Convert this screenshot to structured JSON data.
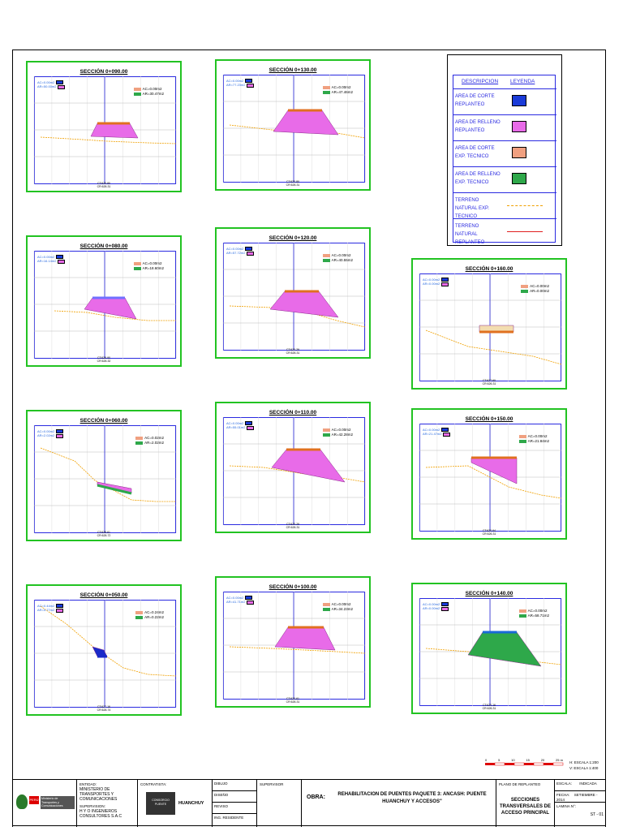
{
  "sections": [
    {
      "title": "SECCIÓN 0+090.00",
      "ac": "AC=0.00m2",
      "ar": "AR=30.47m2",
      "ct": "CT:620.80",
      "cr": "CR:626.31",
      "lt1": "AC=0.00m2",
      "lt2": "AR=50.00m2"
    },
    {
      "title": "SECCIÓN 0+130.00",
      "ac": "AC=0.00m2",
      "ar": "AR=47.46m2",
      "ct": "CT:620.80",
      "cr": "CR:626.31",
      "lt1": "AC=0.00m2",
      "lt2": "AR=77.23m2"
    },
    {
      "title": "SECCIÓN 0+080.00",
      "ac": "AC=0.00m2",
      "ar": "AR=18.60m2",
      "ct": "CT:626.90",
      "cr": "CR:626.32",
      "lt1": "AC=0.00m2",
      "lt2": "AR=16.14m2"
    },
    {
      "title": "SECCIÓN 0+120.00",
      "ac": "AC=0.00m2",
      "ar": "AR=40.55m2",
      "ct": "CT:620.29",
      "cr": "CR:626.31",
      "lt1": "AC=0.00m2",
      "lt2": "AR=57.72m2"
    },
    {
      "title": "SECCIÓN 0+160.00",
      "ac": "AC=0.00m2",
      "ar": "AR=0.00m2",
      "ct": "CT:627.60",
      "cr": "CR:626.31",
      "lt1": "AC=0.00m2",
      "lt2": "AR=0.00m2"
    },
    {
      "title": "SECCIÓN 0+060.00",
      "ac": "AC=0.02m2",
      "ar": "AR=2.02m2",
      "ct": "CT:626.61",
      "cr": "CR:626.72",
      "lt1": "AC=0.00m2",
      "lt2": "AR=2.02m2"
    },
    {
      "title": "SECCIÓN 0+110.00",
      "ac": "AC=0.00m2",
      "ar": "AR=42.28m2",
      "ct": "CT:620.29",
      "cr": "CR:626.31",
      "lt1": "AC=0.00m2",
      "lt2": "AR=55.01m2"
    },
    {
      "title": "SECCIÓN 0+150.00",
      "ac": "AC=0.00m2",
      "ar": "AR=21.84m2",
      "ct": "CT:620.64",
      "cr": "CR:626.31",
      "lt1": "AC=0.00m2",
      "lt2": "AR=21.47m2"
    },
    {
      "title": "SECCIÓN 0+050.00",
      "ac": "AC=0.24m2",
      "ar": "AR=0.22m2",
      "ct": "CT:627.16",
      "cr": "CR:626.74",
      "lt1": "AC=0.44m2",
      "lt2": "AR=0.77m2"
    },
    {
      "title": "SECCIÓN 0+100.00",
      "ac": "AC=0.00m2",
      "ar": "AR=34.23m2",
      "ct": "CT:620.61",
      "cr": "CR:626.31",
      "lt1": "AC=0.00m2",
      "lt2": "AR=41.71m2"
    },
    {
      "title": "SECCIÓN 0+140.00",
      "ac": "AC=0.00m2",
      "ar": "AR=58.71m2",
      "ct": "CT:620.16",
      "cr": "CR:626.31",
      "lt1": "AC=0.00m2",
      "lt2": "AR=0.00m2"
    }
  ],
  "legend": {
    "h1": "DESCRIPCION",
    "h2": "LEYENDA",
    "rows": [
      "AREA DE CORTE REPLANTEO",
      "AREA DE RELLENO REPLANTEO",
      "AREA DE CORTE EXP. TECNICO",
      "AREA DE RELLENO EXP. TECNICO",
      "TERRENO NATURAL EXP. TECNICO",
      "TERRENO NATURAL REPLANTEO"
    ]
  },
  "scale": {
    "marks": [
      "0",
      "5",
      "10",
      "15",
      "20",
      "25 m"
    ],
    "h": "H: ESCALA 1:200",
    "v": "V: ESCALA 1:400"
  },
  "titleblock": {
    "entity_label": "ENTIDAD:",
    "entity": "MINISTERIO DE TRANSPORTES Y COMUNICACIONES",
    "sup_label": "SUPERVISION:",
    "sup": "H Y O INGENIEROS CONSULTORES S.A.C",
    "contr_label": "CONTRATISTA:",
    "contr": "CONSORCIO PUENTE",
    "contr2": "HUANCHUY",
    "dibujo": "DIBUJO",
    "dis": "DISEÑO",
    "rev": "REVISO",
    "ing": "ING. RESIDENTE",
    "sup2": "SUPERVISOR",
    "obra_label": "OBRA:",
    "obra": "REHABILITACION DE PUENTES PAQUETE 3: ANCASH: PUENTE HUANCHUY Y ACCESOS\"",
    "plano_label": "PLANO DE REPLANTEO",
    "plano": "SECCIONES TRANSVERSALES DE ACCESO PRINCIPAL",
    "escala": "ESCALA:",
    "fecha": "FECHA:",
    "lamina": "LAMINA N°:",
    "lam": "ST - 01",
    "fechaval": "SETIEMBRE - 2014",
    "escval": "INDICADA",
    "peru": "PERÚ",
    "min": "Ministerio de Transportes y Comunicaciones"
  }
}
